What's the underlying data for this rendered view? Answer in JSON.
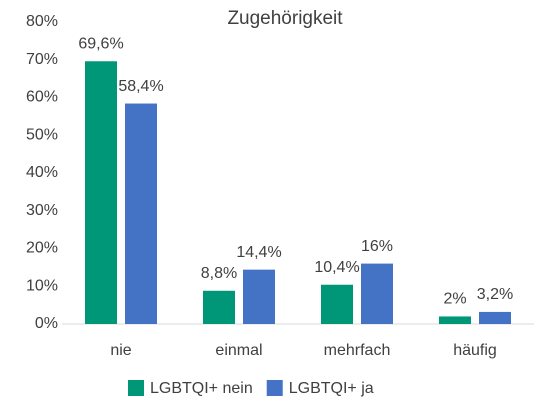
{
  "chart_data": {
    "type": "bar",
    "title": "Zugehörigkeit",
    "categories": [
      "nie",
      "einmal",
      "mehrfach",
      "häufig"
    ],
    "series": [
      {
        "name": "LGBTQI+ nein",
        "color": "#009779",
        "values": [
          69.6,
          8.8,
          10.4,
          2
        ],
        "value_labels": [
          "69,6%",
          "8,8%",
          "10,4%",
          "2%"
        ]
      },
      {
        "name": "LGBTQI+ ja",
        "color": "#4472c4",
        "values": [
          58.4,
          14.4,
          16,
          3.2
        ],
        "value_labels": [
          "58,4%",
          "14,4%",
          "16%",
          "3,2%"
        ]
      }
    ],
    "ylim": [
      0,
      80
    ],
    "yticks": [
      {
        "value": 0,
        "label": "0%"
      },
      {
        "value": 10,
        "label": "10%"
      },
      {
        "value": 20,
        "label": "20%"
      },
      {
        "value": 30,
        "label": "30%"
      },
      {
        "value": 40,
        "label": "40%"
      },
      {
        "value": 50,
        "label": "50%"
      },
      {
        "value": 60,
        "label": "60%"
      },
      {
        "value": 70,
        "label": "70%"
      },
      {
        "value": 80,
        "label": "80%"
      }
    ],
    "grid": false,
    "legend": "bottom"
  }
}
